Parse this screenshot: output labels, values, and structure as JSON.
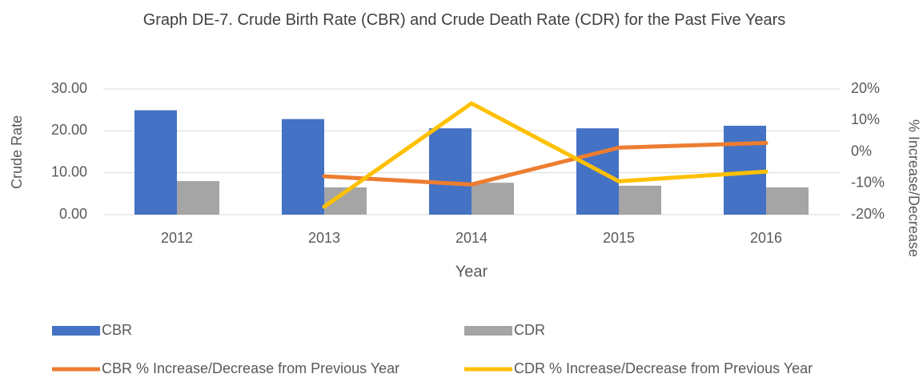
{
  "chart_data": {
    "type": "bar-line",
    "title": "Graph DE-7. Crude Birth Rate (CBR) and Crude Death Rate (CDR) for the Past Five Years",
    "x_label": "Year",
    "y_label": "Crude Rate",
    "y2_label": "% Increase/Decrease",
    "categories": [
      "2012",
      "2013",
      "2014",
      "2015",
      "2016"
    ],
    "series": [
      {
        "name": "CBR",
        "type": "bar",
        "color": "#4472c4",
        "values": [
          24.9,
          22.8,
          20.6,
          20.6,
          21.2
        ]
      },
      {
        "name": "CDR",
        "type": "bar",
        "color": "#a5a5a5",
        "values": [
          8.0,
          6.5,
          7.6,
          6.9,
          6.5
        ]
      },
      {
        "name": "CBR % Increase/Decrease from Previous Year",
        "type": "line",
        "axis": "y2",
        "color": "#ed7d31",
        "values": [
          null,
          -7.8,
          -10.4,
          1.3,
          2.8
        ]
      },
      {
        "name": "CDR % Increase/Decrease from Previous Year",
        "type": "line",
        "axis": "y2",
        "color": "#ffc000",
        "values": [
          null,
          -17.5,
          15.4,
          -9.4,
          -6.3
        ]
      }
    ],
    "ylim": [
      0,
      30
    ],
    "yticks": [
      {
        "value": 0,
        "label": "0.00"
      },
      {
        "value": 10,
        "label": "10.00"
      },
      {
        "value": 20,
        "label": "20.00"
      },
      {
        "value": 30,
        "label": "30.00"
      }
    ],
    "y2lim": [
      -20,
      20
    ],
    "y2ticks": [
      {
        "value": -20,
        "label": "-20%"
      },
      {
        "value": -10,
        "label": "-10%"
      },
      {
        "value": 0,
        "label": "0%"
      },
      {
        "value": 10,
        "label": "10%"
      },
      {
        "value": 20,
        "label": "20%"
      }
    ],
    "grid": true,
    "legend": "bottom"
  }
}
